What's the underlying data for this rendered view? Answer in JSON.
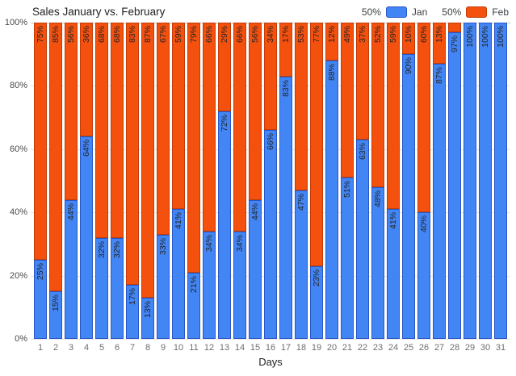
{
  "title": "Sales January vs. February",
  "legend": {
    "items": [
      {
        "prefix": "50%",
        "label": "Jan",
        "series": "jan"
      },
      {
        "prefix": "50%",
        "label": "Feb",
        "series": "feb"
      }
    ]
  },
  "axes": {
    "x_label": "Days",
    "y_ticks_top_to_bottom": [
      "100%",
      "80%",
      "60%",
      "40%",
      "20%",
      "0%"
    ]
  },
  "colors": {
    "jan_fill": "#4285f4",
    "jan_border": "#2a56c6",
    "feb_fill": "#f4500e",
    "feb_border": "#c23d08",
    "label_text": "#262626",
    "grid": "#e6e6e6",
    "grid_top": "#c8c8c8",
    "y_tick_text": "#4a4a4a",
    "x_tick_text": "#6e6e6e",
    "title_text": "#212121"
  },
  "chart_data": {
    "type": "bar",
    "stacked": true,
    "stack_mode": "percent",
    "title": "Sales January vs. February",
    "xlabel": "Days",
    "ylabel": "",
    "ylim": [
      0,
      100
    ],
    "grid": true,
    "legend_position": "top-right",
    "categories": [
      1,
      2,
      3,
      4,
      5,
      6,
      7,
      8,
      9,
      10,
      11,
      12,
      13,
      14,
      15,
      16,
      17,
      18,
      19,
      20,
      21,
      22,
      23,
      24,
      25,
      26,
      27,
      28,
      29,
      30,
      31
    ],
    "series": [
      {
        "name": "Jan",
        "color": "#4285f4",
        "values": [
          25,
          15,
          44,
          64,
          32,
          32,
          17,
          13,
          33,
          41,
          21,
          34,
          72,
          34,
          44,
          66,
          83,
          47,
          23,
          88,
          51,
          63,
          48,
          41,
          90,
          40,
          87,
          97,
          100,
          100,
          100
        ],
        "labels": [
          "25%",
          "15%",
          "44%",
          "64%",
          "32%",
          "32%",
          "17%",
          "13%",
          "33%",
          "41%",
          "21%",
          "34%",
          "72%",
          "34%",
          "44%",
          "66%",
          "83%",
          "47%",
          "23%",
          "88%",
          "51%",
          "63%",
          "48%",
          "41%",
          "90%",
          "40%",
          "87%",
          "97%",
          "100%",
          "100%",
          "100%"
        ]
      },
      {
        "name": "Feb",
        "color": "#f4500e",
        "values": [
          75,
          85,
          56,
          36,
          68,
          68,
          83,
          87,
          67,
          59,
          79,
          66,
          29,
          66,
          56,
          34,
          17,
          53,
          77,
          12,
          49,
          37,
          52,
          59,
          10,
          60,
          13,
          3,
          0,
          0,
          0
        ],
        "labels": [
          "75%",
          "85%",
          "56%",
          "36%",
          "68%",
          "68%",
          "83%",
          "87%",
          "67%",
          "59%",
          "79%",
          "66%",
          "29%",
          "66%",
          "56%",
          "34%",
          "17%",
          "53%",
          "77%",
          "12%",
          "49%",
          "37%",
          "52%",
          "59%",
          "10%",
          "60%",
          "13%",
          "",
          "",
          ""
        ]
      }
    ]
  }
}
